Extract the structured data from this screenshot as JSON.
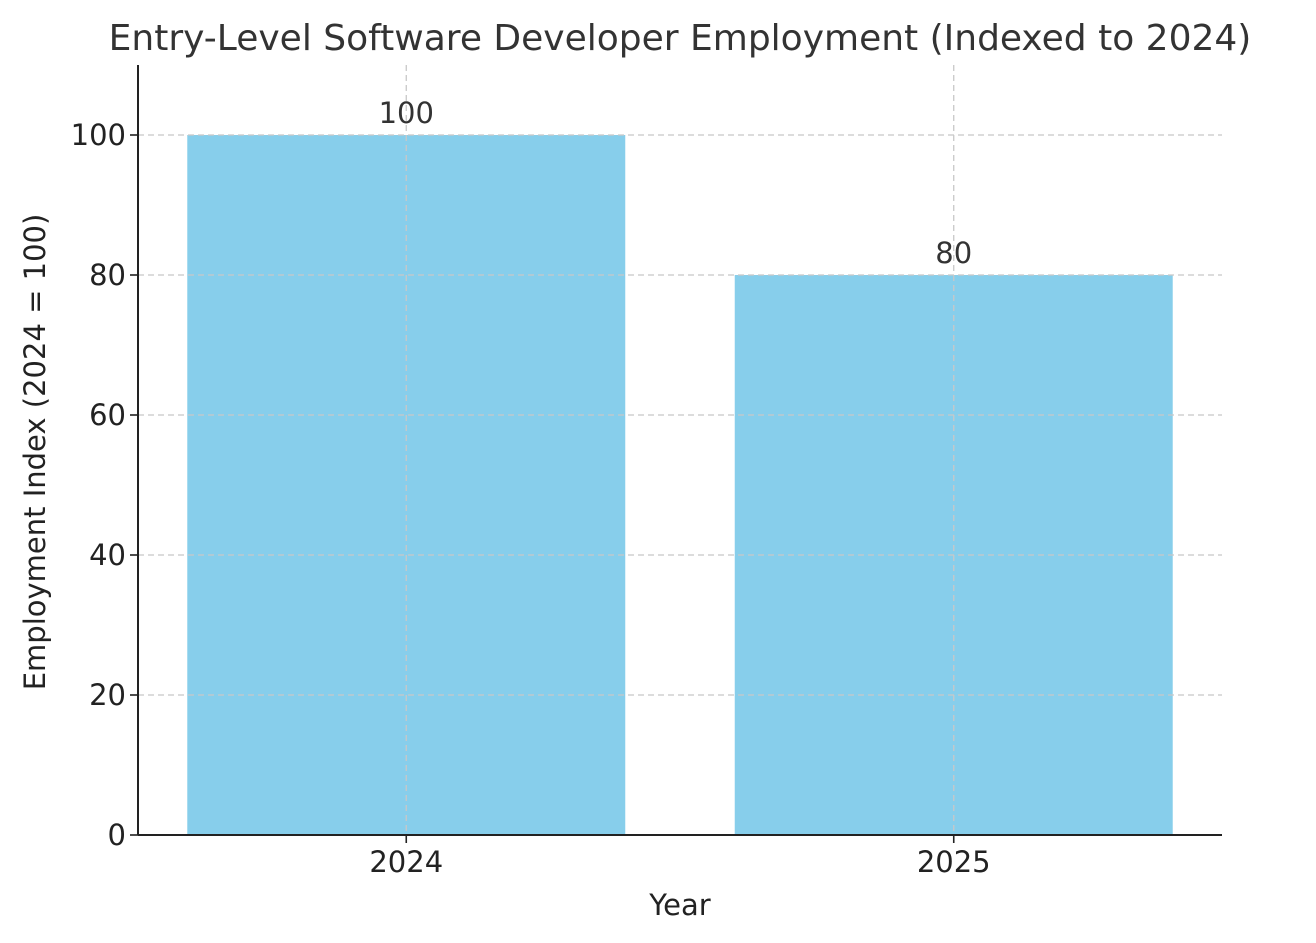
{
  "chart_data": {
    "type": "bar",
    "title": "Entry-Level Software Developer Employment (Indexed to 2024)",
    "xlabel": "Year",
    "ylabel": "Employment Index (2024 = 100)",
    "categories": [
      "2024",
      "2025"
    ],
    "values": [
      100,
      80
    ],
    "data_labels": [
      "100",
      "80"
    ],
    "ylim": [
      0,
      110
    ],
    "yticks": [
      0,
      20,
      40,
      60,
      80,
      100
    ],
    "ytick_labels": [
      "0",
      "20",
      "40",
      "60",
      "80",
      "100"
    ],
    "grid": true,
    "bar_color": "#87CEEB"
  }
}
